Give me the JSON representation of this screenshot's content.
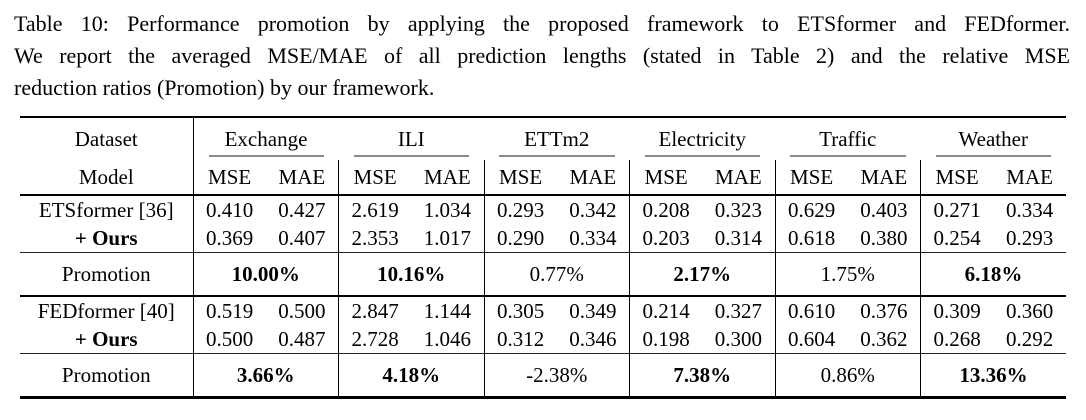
{
  "caption": {
    "full_text": "Table 10: Performance promotion by applying the proposed framework to ETSformer and FEDformer. We report the averaged MSE/MAE of all prediction lengths (stated in Table 2) and the relative MSE reduction ratios (Promotion) by our framework.",
    "lines": [
      "Table 10: Performance promotion by applying the proposed framework to ETSformer and FEDformer.",
      "We report the averaged MSE/MAE of all prediction lengths (stated in Table 2) and the relative MSE",
      "reduction ratios (Promotion) by our framework."
    ]
  },
  "table": {
    "header": {
      "dataset_label": "Dataset",
      "model_label": "Model",
      "datasets": [
        "Exchange",
        "ILI",
        "ETTm2",
        "Electricity",
        "Traffic",
        "Weather"
      ],
      "metrics": [
        "MSE",
        "MAE"
      ]
    },
    "sections": [
      {
        "rows": [
          {
            "label": "ETSformer [36]",
            "bold_label": false,
            "values": [
              "0.410",
              "0.427",
              "2.619",
              "1.034",
              "0.293",
              "0.342",
              "0.208",
              "0.323",
              "0.629",
              "0.403",
              "0.271",
              "0.334"
            ]
          },
          {
            "label": "+ Ours",
            "bold_label": true,
            "values": [
              "0.369",
              "0.407",
              "2.353",
              "1.017",
              "0.290",
              "0.334",
              "0.203",
              "0.314",
              "0.618",
              "0.380",
              "0.254",
              "0.293"
            ]
          }
        ],
        "promotion": {
          "label": "Promotion",
          "values": [
            {
              "text": "10.00%",
              "bold": true
            },
            {
              "text": "10.16%",
              "bold": true
            },
            {
              "text": "0.77%",
              "bold": false
            },
            {
              "text": "2.17%",
              "bold": true
            },
            {
              "text": "1.75%",
              "bold": false
            },
            {
              "text": "6.18%",
              "bold": true
            }
          ]
        }
      },
      {
        "rows": [
          {
            "label": "FEDformer [40]",
            "bold_label": false,
            "values": [
              "0.519",
              "0.500",
              "2.847",
              "1.144",
              "0.305",
              "0.349",
              "0.214",
              "0.327",
              "0.610",
              "0.376",
              "0.309",
              "0.360"
            ]
          },
          {
            "label": "+ Ours",
            "bold_label": true,
            "values": [
              "0.500",
              "0.487",
              "2.728",
              "1.046",
              "0.312",
              "0.346",
              "0.198",
              "0.300",
              "0.604",
              "0.362",
              "0.268",
              "0.292"
            ]
          }
        ],
        "promotion": {
          "label": "Promotion",
          "values": [
            {
              "text": "3.66%",
              "bold": true
            },
            {
              "text": "4.18%",
              "bold": true
            },
            {
              "text": "-2.38%",
              "bold": false
            },
            {
              "text": "7.38%",
              "bold": true
            },
            {
              "text": "0.86%",
              "bold": false
            },
            {
              "text": "13.36%",
              "bold": true
            }
          ]
        }
      }
    ]
  },
  "colors": {
    "text": "#000000",
    "rule_heavy": "#000000",
    "cmidrule": "#8a8a8a",
    "background": "#ffffff"
  }
}
